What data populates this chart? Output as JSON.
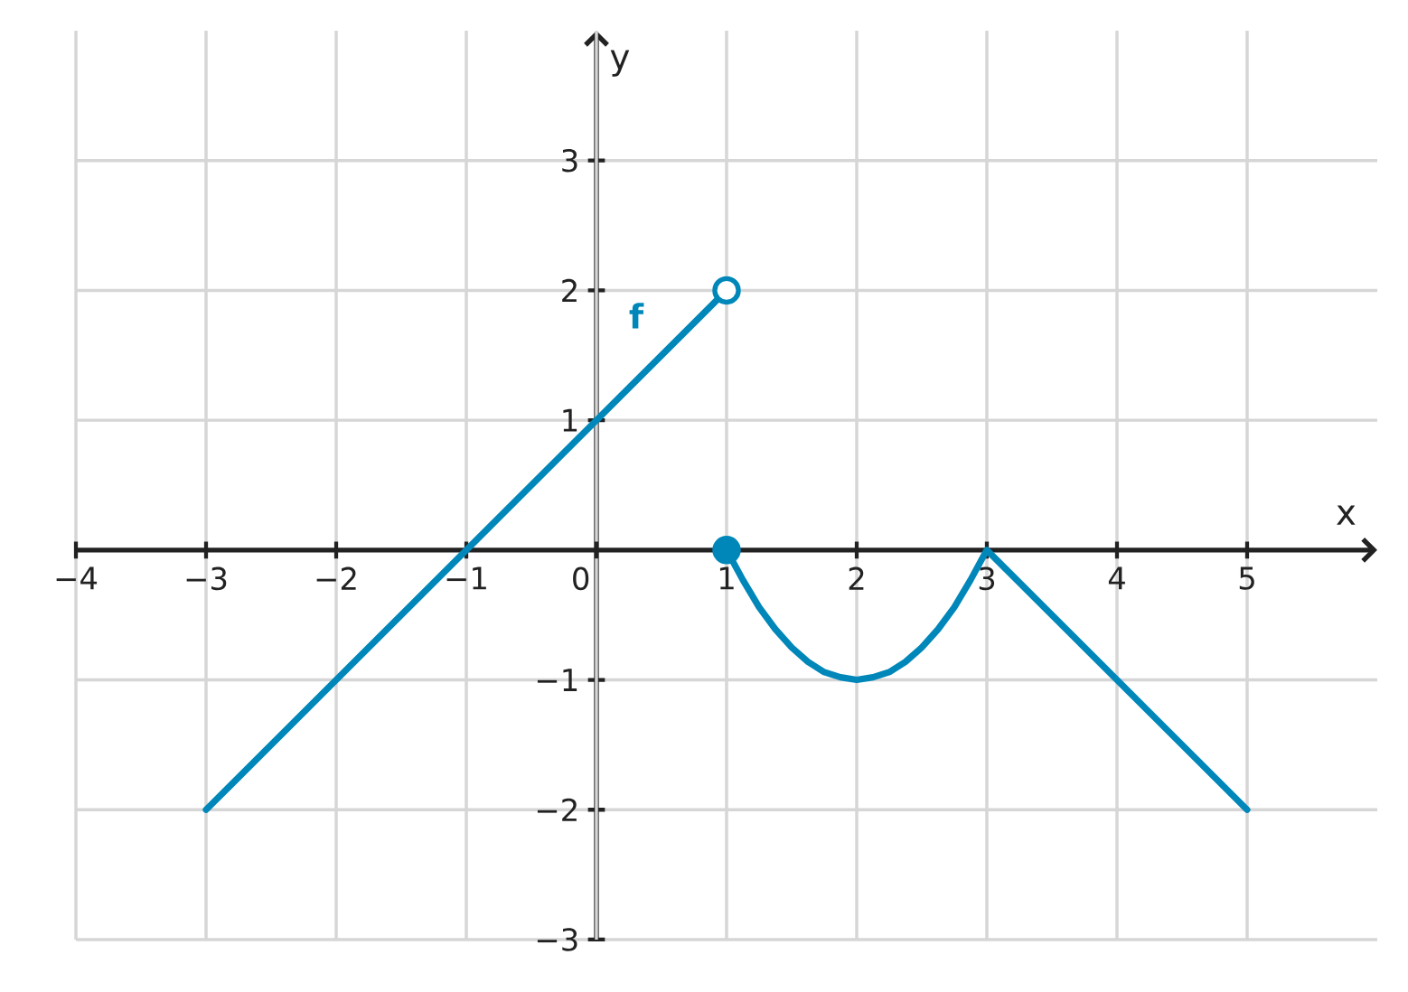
{
  "chart_data": {
    "type": "line",
    "xlabel": "x",
    "ylabel": "y",
    "series": [
      {
        "name": "f",
        "color": "#0087b9",
        "x": [
          -3,
          -1,
          1
        ],
        "values": [
          -2,
          0,
          2
        ]
      },
      {
        "type": "scatter",
        "color": "#ffffff",
        "marker": "circle",
        "x": [
          1
        ],
        "values": [
          2
        ]
      },
      {
        "color": "#0087b9",
        "x": [
          1,
          1.125,
          1.25,
          1.375,
          1.5,
          1.625,
          1.75,
          1.875,
          2,
          2.125,
          2.25,
          2.375,
          2.5,
          2.625,
          2.75,
          2.875,
          3,
          5
        ],
        "values": [
          0,
          -0.23,
          -0.44,
          -0.61,
          -0.75,
          -0.86,
          -0.94,
          -0.98,
          -1,
          -0.98,
          -0.94,
          -0.86,
          -0.75,
          -0.61,
          -0.44,
          -0.23,
          0,
          -2
        ]
      },
      {
        "type": "scatter",
        "color": "#0087b9",
        "marker": "circle",
        "x": [
          1
        ],
        "values": [
          0
        ]
      }
    ],
    "xlim": [
      -4,
      6
    ],
    "ylim": [
      -3,
      4
    ],
    "xticks": [
      {
        "value": -4,
        "label": "−4"
      },
      {
        "value": -3,
        "label": "−3"
      },
      {
        "value": -2,
        "label": "−2"
      },
      {
        "value": -1,
        "label": "−1"
      },
      0,
      1,
      2,
      3,
      4,
      5
    ],
    "yticks": [
      {
        "value": -3,
        "label": "−3"
      },
      {
        "value": -2,
        "label": "−2"
      },
      {
        "value": -1,
        "label": "−1"
      },
      1,
      2,
      3
    ],
    "grid": true
  }
}
